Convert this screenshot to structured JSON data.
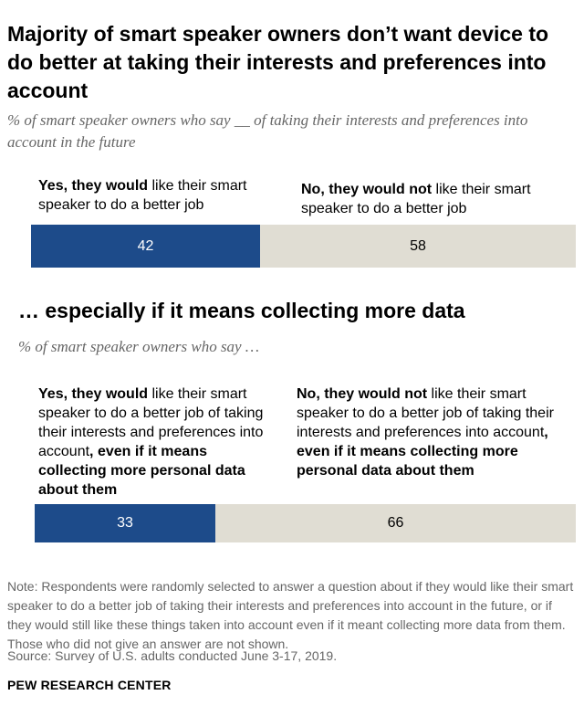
{
  "title": "Majority of smart speaker owners don’t want device to do better at taking their interests and preferences into account",
  "subtitle": "% of smart speaker owners who say __ of taking their interests and preferences into account in the future",
  "section1": {
    "yes_label_bold": "Yes, they would",
    "yes_label_rest": " like their smart speaker to do a better job",
    "no_label_bold": "No, they would not",
    "no_label_rest": " like their smart speaker to do a better job"
  },
  "section2": {
    "heading": "… especially if it means collecting more data",
    "subtitle": "% of smart speaker owners who say …",
    "yes_label_bold": "Yes, they would",
    "yes_label_mid": " like their smart speaker to do a better job of taking their interests and preferences into account",
    "yes_label_bold2": ", even if it means collecting more personal data about them",
    "no_label_bold": "No, they would not",
    "no_label_mid": " like their smart speaker to do a better job of taking their interests and preferences into account",
    "no_label_bold2": ", even if it means collecting more personal data about them"
  },
  "chart_data": [
    {
      "type": "bar",
      "orientation": "horizontal-stacked",
      "categories": [
        "Yes, they would",
        "No, they would not"
      ],
      "values": [
        42,
        58
      ],
      "colors": [
        "#1d4b8a",
        "#e0ddd3"
      ]
    },
    {
      "type": "bar",
      "orientation": "horizontal-stacked",
      "categories": [
        "Yes, they would",
        "No, they would not"
      ],
      "values": [
        33,
        66
      ],
      "colors": [
        "#1d4b8a",
        "#e0ddd3"
      ]
    }
  ],
  "note": "Note: Respondents were randomly selected to answer a question about if they would like their smart speaker to do a better job of taking their interests and preferences into account in the future, or if they would still like these things taken into account even if it meant collecting more data from them. Those who did not give an answer are not shown.",
  "source": "Source: Survey of U.S. adults conducted June 3-17, 2019.",
  "brand": "PEW RESEARCH CENTER"
}
